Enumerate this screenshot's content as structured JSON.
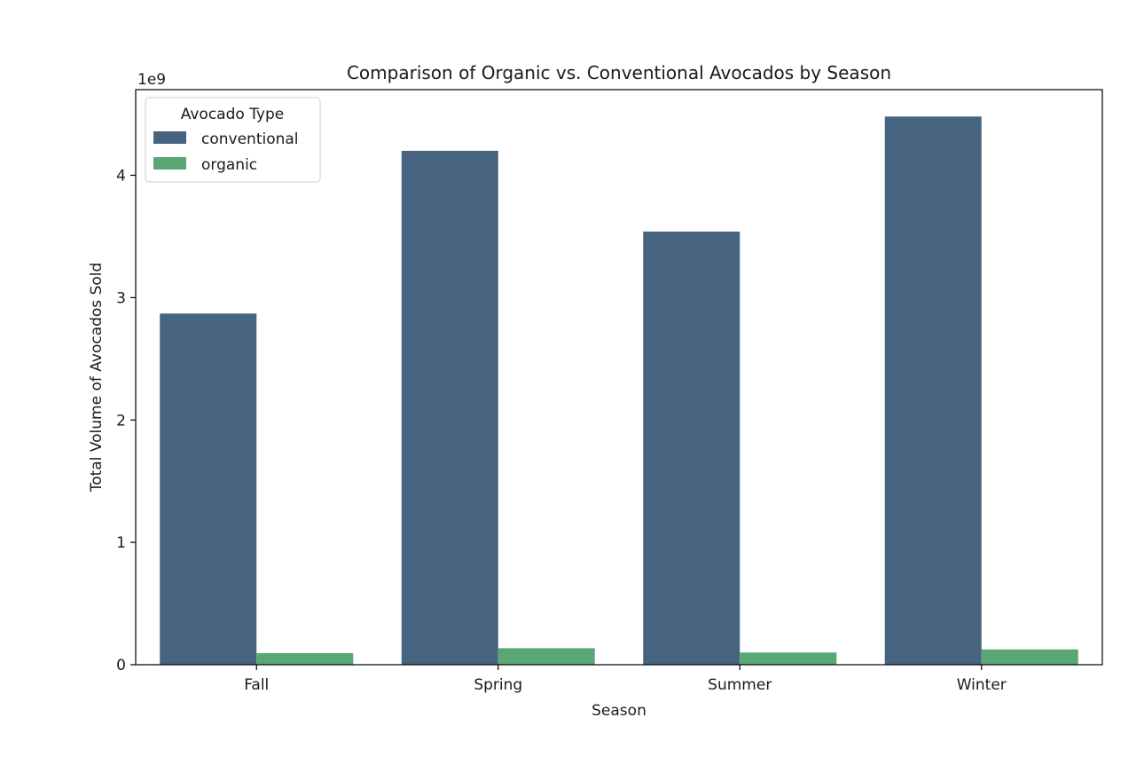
{
  "chart_data": {
    "type": "bar",
    "title": "Comparison of Organic vs. Conventional Avocados by Season",
    "xlabel": "Season",
    "ylabel": "Total Volume of Avocados Sold",
    "offset_text": "1e9",
    "categories": [
      "Fall",
      "Spring",
      "Summer",
      "Winter"
    ],
    "series": [
      {
        "name": "conventional",
        "color": "#46647f",
        "values": [
          2870000000,
          4200000000,
          3540000000,
          4480000000
        ]
      },
      {
        "name": "organic",
        "color": "#5aa775",
        "values": [
          95000000,
          135000000,
          100000000,
          125000000
        ]
      }
    ],
    "ylim": [
      0,
      4700000000
    ],
    "yticks": [
      0,
      1000000000,
      2000000000,
      3000000000,
      4000000000
    ],
    "ytick_labels": [
      "0",
      "1",
      "2",
      "3",
      "4"
    ],
    "legend": {
      "title": "Avocado Type",
      "position": "top-left"
    },
    "grid": false
  }
}
